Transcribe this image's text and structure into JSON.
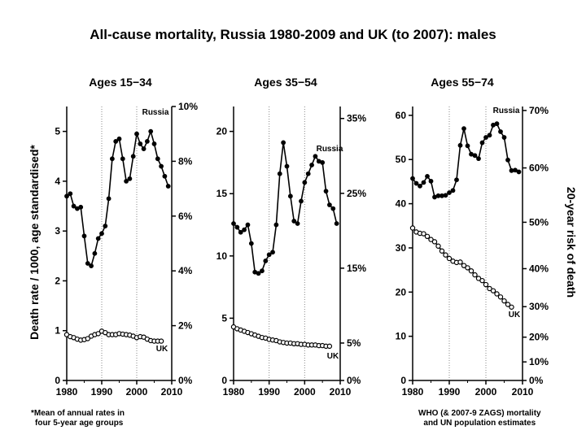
{
  "title": "All-cause mortality, Russia 1980-2009 and UK (to 2007): males",
  "left_axis_label": "Death rate / 1000, age standardised*",
  "right_axis_label": "20-year risk of death",
  "footnote_left": [
    "*Mean of annual rates in",
    "four 5-year age groups"
  ],
  "footnote_right": [
    "WHO (& 2007-9 ZAGS) mortality",
    "and UN population estimates"
  ],
  "colors": {
    "line": "#000000",
    "marker_fill": "#ffffff",
    "grid": "#888888"
  },
  "chart_data": [
    {
      "type": "line",
      "title": "Ages 15−34",
      "x": [
        1980,
        1981,
        1982,
        1983,
        1984,
        1985,
        1986,
        1987,
        1988,
        1989,
        1990,
        1991,
        1992,
        1993,
        1994,
        1995,
        1996,
        1997,
        1998,
        1999,
        2000,
        2001,
        2002,
        2003,
        2004,
        2005,
        2006,
        2007,
        2008,
        2009
      ],
      "xlim": [
        1980,
        2010
      ],
      "xticks": [
        "1980",
        "1990",
        "2000",
        "2010"
      ],
      "ylim": [
        0,
        5.5
      ],
      "yticks": [
        "0",
        "1",
        "2",
        "3",
        "4",
        "5"
      ],
      "right_ylim": [
        0,
        0.1
      ],
      "right_ticks": [
        "0%",
        "2%",
        "4%",
        "6%",
        "8%",
        "10%"
      ],
      "grid": "vertical dotted at 1990 and 2000",
      "series": [
        {
          "name": "Russia",
          "values": [
            3.7,
            3.75,
            3.5,
            3.45,
            3.48,
            2.9,
            2.35,
            2.3,
            2.55,
            2.85,
            2.95,
            3.1,
            3.65,
            4.45,
            4.8,
            4.85,
            4.45,
            4.0,
            4.05,
            4.5,
            4.95,
            4.75,
            4.65,
            4.8,
            5.0,
            4.75,
            4.45,
            4.3,
            4.1,
            3.9
          ]
        },
        {
          "name": "UK",
          "values": [
            0.92,
            0.88,
            0.86,
            0.83,
            0.81,
            0.82,
            0.84,
            0.89,
            0.92,
            0.94,
            0.99,
            0.96,
            0.92,
            0.92,
            0.92,
            0.94,
            0.93,
            0.92,
            0.91,
            0.89,
            0.86,
            0.88,
            0.87,
            0.83,
            0.8,
            0.79,
            0.79,
            0.79,
            null,
            null
          ]
        }
      ]
    },
    {
      "type": "line",
      "title": "Ages 35−54",
      "x": [
        1980,
        1981,
        1982,
        1983,
        1984,
        1985,
        1986,
        1987,
        1988,
        1989,
        1990,
        1991,
        1992,
        1993,
        1994,
        1995,
        1996,
        1997,
        1998,
        1999,
        2000,
        2001,
        2002,
        2003,
        2004,
        2005,
        2006,
        2007,
        2008,
        2009
      ],
      "xlim": [
        1980,
        2010
      ],
      "xticks": [
        "1980",
        "1990",
        "2000",
        "2010"
      ],
      "ylim": [
        0,
        22
      ],
      "yticks": [
        "0",
        "5",
        "10",
        "15",
        "20"
      ],
      "right_ylim": [
        0,
        0.366
      ],
      "right_ticks": [
        "0%",
        "5%",
        "15%",
        "25%",
        "35%"
      ],
      "grid": "vertical dotted at 1990 and 2000",
      "series": [
        {
          "name": "Russia",
          "values": [
            12.6,
            12.3,
            11.9,
            12.1,
            12.5,
            11.0,
            8.7,
            8.6,
            8.8,
            9.6,
            10.1,
            10.3,
            12.5,
            16.6,
            19.1,
            17.2,
            14.8,
            12.8,
            12.6,
            14.4,
            15.9,
            16.6,
            17.3,
            18.0,
            17.6,
            17.5,
            15.2,
            14.1,
            13.8,
            12.6
          ]
        },
        {
          "name": "UK",
          "values": [
            4.3,
            4.15,
            4.05,
            3.95,
            3.85,
            3.75,
            3.65,
            3.55,
            3.45,
            3.4,
            3.3,
            3.25,
            3.2,
            3.1,
            3.05,
            3.0,
            3.0,
            2.95,
            2.95,
            2.9,
            2.9,
            2.85,
            2.85,
            2.85,
            2.8,
            2.8,
            2.75,
            2.75,
            null,
            null
          ]
        }
      ]
    },
    {
      "type": "line",
      "title": "Ages 55−74",
      "x": [
        1980,
        1981,
        1982,
        1983,
        1984,
        1985,
        1986,
        1987,
        1988,
        1989,
        1990,
        1991,
        1992,
        1993,
        1994,
        1995,
        1996,
        1997,
        1998,
        1999,
        2000,
        2001,
        2002,
        2003,
        2004,
        2005,
        2006,
        2007,
        2008,
        2009
      ],
      "xlim": [
        1980,
        2010
      ],
      "xticks": [
        "1980",
        "1990",
        "2000",
        "2010"
      ],
      "ylim": [
        0,
        62
      ],
      "yticks": [
        "0",
        "10",
        "20",
        "30",
        "40",
        "50",
        "60"
      ],
      "right_ticks": [
        "0%",
        "10%",
        "20%",
        "30%",
        "40%",
        "50%",
        "60%",
        "70%"
      ],
      "right_tick_values": [
        0,
        4.2,
        9.8,
        16.7,
        25.3,
        35.8,
        48.1,
        61.1
      ],
      "right_axis_label": "20-year risk of death",
      "grid": "vertical dotted at 1990 and 2000",
      "series": [
        {
          "name": "Russia",
          "values": [
            45.7,
            44.6,
            44.0,
            44.8,
            46.2,
            45.1,
            41.5,
            41.8,
            41.8,
            41.9,
            42.5,
            43.0,
            45.4,
            53.2,
            57.0,
            53.1,
            51.2,
            50.9,
            50.2,
            53.8,
            55.0,
            55.5,
            57.8,
            58.1,
            56.3,
            55.0,
            49.9,
            47.5,
            47.6,
            47.2
          ]
        },
        {
          "name": "UK",
          "values": [
            34.5,
            33.6,
            33.3,
            33.2,
            32.6,
            31.9,
            31.4,
            30.4,
            29.3,
            28.4,
            27.6,
            27.0,
            26.7,
            26.8,
            26.0,
            25.5,
            24.8,
            23.9,
            23.1,
            22.6,
            21.7,
            20.8,
            20.3,
            19.6,
            18.9,
            18.0,
            17.2,
            16.6,
            null,
            null
          ]
        }
      ]
    }
  ]
}
